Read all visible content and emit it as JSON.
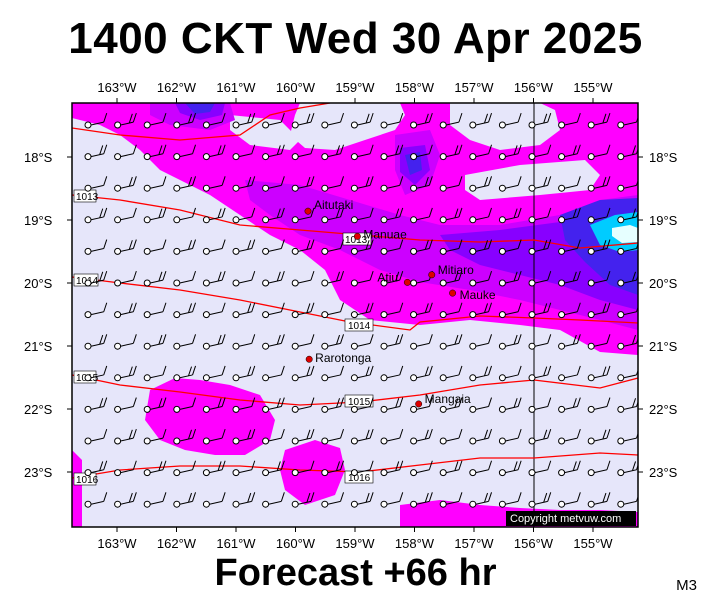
{
  "title": "1400 CKT Wed 30 Apr 2025",
  "footer": "Forecast +66 hr",
  "model_tag": "M3",
  "copyright": "Copyright metvuw.com",
  "map": {
    "lon_labels": [
      "163°W",
      "162°W",
      "161°W",
      "160°W",
      "159°W",
      "158°W",
      "157°W",
      "156°W",
      "155°W"
    ],
    "lat_labels": [
      "18°S",
      "19°S",
      "20°S",
      "21°S",
      "22°S",
      "23°S"
    ],
    "places": [
      {
        "name": "Aitutaki",
        "lon": -159.79,
        "lat": -18.86
      },
      {
        "name": "Manuae",
        "lon": -158.96,
        "lat": -19.26
      },
      {
        "name": "Atiu",
        "lon": -158.12,
        "lat": -19.99
      },
      {
        "name": "Mitiaro",
        "lon": -157.71,
        "lat": -19.87
      },
      {
        "name": "Mauke",
        "lon": -157.36,
        "lat": -20.16
      },
      {
        "name": "Rarotonga",
        "lon": -159.77,
        "lat": -21.21
      },
      {
        "name": "Mangaia",
        "lon": -157.93,
        "lat": -21.92
      }
    ],
    "isobar_labels": [
      "1013",
      "1013",
      "1014",
      "1014",
      "1015",
      "1015",
      "1016",
      "1016"
    ],
    "colors": {
      "background": "#e6e6fa",
      "rain_light": "#ff00ff",
      "rain_mid": "#cc00ff",
      "rain_heavy": "#8800ff",
      "rain_heavier": "#4422ee",
      "rain_peak": "#00ccff",
      "isobar": "#ff0000",
      "town": "#dd0000"
    },
    "wind_note": "Wind barbs mostly from the east-southeast across the region"
  }
}
